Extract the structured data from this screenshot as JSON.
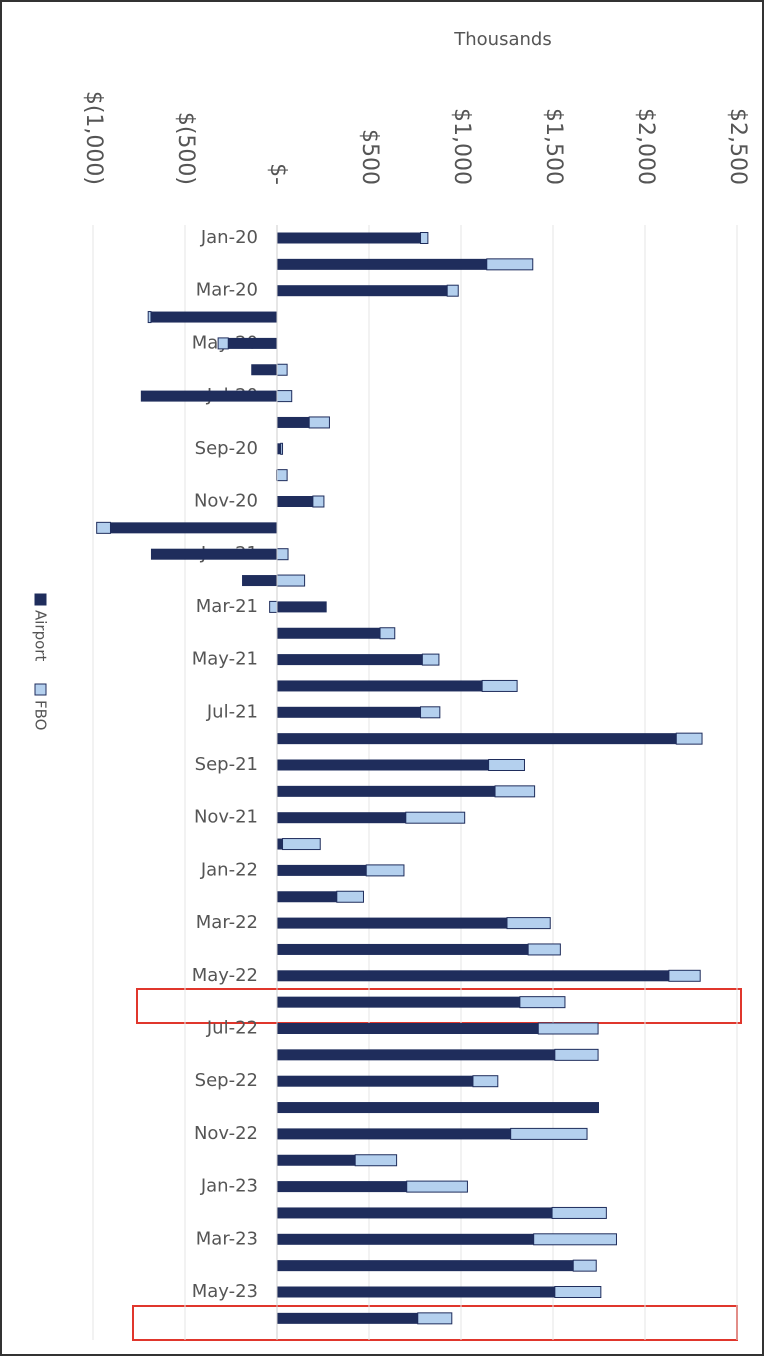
{
  "chart_data": {
    "type": "bar",
    "orientation": "horizontal",
    "stacked": true,
    "x_label": "Thousands",
    "categories": [
      "Jan-20",
      null,
      "Mar-20",
      null,
      "May-20",
      null,
      "Jul-20",
      null,
      "Sep-20",
      null,
      "Nov-20",
      null,
      "Jan-21",
      null,
      "Mar-21",
      null,
      "May-21",
      null,
      "Jul-21",
      null,
      "Sep-21",
      null,
      "Nov-21",
      null,
      "Jan-22",
      null,
      "Mar-22",
      null,
      "May-22",
      null,
      "Jul-22",
      null,
      "Sep-22",
      null,
      "Nov-22",
      null,
      "Jan-23",
      null,
      "Mar-23",
      null,
      "May-23",
      null
    ],
    "series": [
      {
        "name": "Airport",
        "color": "#1f2d5c",
        "values": [
          780,
          1140,
          925,
          -685,
          -265,
          -140,
          -740,
          175,
          20,
          -5,
          195,
          -905,
          -685,
          -190,
          270,
          560,
          790,
          1115,
          780,
          2170,
          1150,
          1185,
          700,
          30,
          485,
          325,
          1250,
          1365,
          2130,
          1320,
          1420,
          1510,
          1065,
          1750,
          1270,
          425,
          705,
          1495,
          1395,
          1610,
          1510,
          765
        ]
      },
      {
        "name": "FBO",
        "color": "#b4d0ee",
        "values": [
          40,
          250,
          60,
          -15,
          -55,
          55,
          80,
          110,
          10,
          55,
          60,
          -75,
          60,
          150,
          -40,
          80,
          90,
          190,
          105,
          140,
          195,
          215,
          320,
          205,
          205,
          145,
          235,
          175,
          170,
          245,
          325,
          235,
          135,
          0,
          415,
          225,
          330,
          295,
          450,
          125,
          250,
          185
        ]
      }
    ],
    "xlim": [
      -1000,
      2500
    ],
    "xticks": [
      {
        "value": -1000,
        "label": "$(1,000)"
      },
      {
        "value": -500,
        "label": "$(500)"
      },
      {
        "value": 0,
        "label": "$-"
      },
      {
        "value": 500,
        "label": "$500"
      },
      {
        "value": 1000,
        "label": "$1,000"
      },
      {
        "value": 1500,
        "label": "$1,500"
      },
      {
        "value": 2000,
        "label": "$2,000"
      },
      {
        "value": 2500,
        "label": "$2,500"
      }
    ],
    "grid": true,
    "legend": "left"
  }
}
